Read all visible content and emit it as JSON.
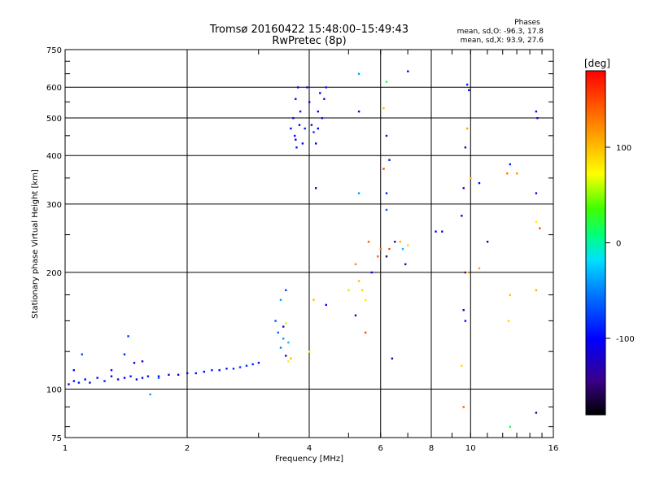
{
  "chart_data": {
    "type": "scatter",
    "title": "Tromsø 20160422 15:48:00–15:49:43",
    "subtitle": "RwPretec (8p)",
    "stats": {
      "heading": "Phases",
      "line_o": "mean, sd,O: -96.3, 17.8",
      "line_x": "mean, sd,X:  93.9, 27.6"
    },
    "xlabel": "Frequency [MHz]",
    "ylabel": "Stationary phase Virtual Height [km]",
    "xscale": "log",
    "yscale": "log",
    "xlim": [
      1,
      16
    ],
    "ylim": [
      75,
      750
    ],
    "x_ticks": [
      {
        "v": 1,
        "label": "1"
      },
      {
        "v": 2,
        "label": "2"
      },
      {
        "v": 4,
        "label": "4"
      },
      {
        "v": 6,
        "label": "6"
      },
      {
        "v": 8,
        "label": "8"
      },
      {
        "v": 10,
        "label": "10"
      },
      {
        "v": 16,
        "label": "16"
      }
    ],
    "y_ticks": [
      {
        "v": 75,
        "label": "75"
      },
      {
        "v": 100,
        "label": "100"
      },
      {
        "v": 200,
        "label": "200"
      },
      {
        "v": 300,
        "label": "300"
      },
      {
        "v": 400,
        "label": "400"
      },
      {
        "v": 500,
        "label": "500"
      },
      {
        "v": 600,
        "label": "600"
      },
      {
        "v": 750,
        "label": "750"
      }
    ],
    "colorbar": {
      "label": "[deg]",
      "range": [
        -180,
        180
      ],
      "ticks": [
        {
          "v": 100,
          "label": "100"
        },
        {
          "v": 0,
          "label": "0"
        },
        {
          "v": -100,
          "label": "-100"
        }
      ]
    },
    "points": [
      [
        1.02,
        103,
        -100
      ],
      [
        1.05,
        105,
        -105
      ],
      [
        1.08,
        104,
        -95
      ],
      [
        1.12,
        106,
        -100
      ],
      [
        1.15,
        104,
        -110
      ],
      [
        1.2,
        107,
        -100
      ],
      [
        1.25,
        105,
        -95
      ],
      [
        1.3,
        108,
        -100
      ],
      [
        1.35,
        106,
        -110
      ],
      [
        1.4,
        107,
        -100
      ],
      [
        1.45,
        108,
        -95
      ],
      [
        1.5,
        106,
        -105
      ],
      [
        1.55,
        107,
        -100
      ],
      [
        1.6,
        108,
        -95
      ],
      [
        1.7,
        108,
        -100
      ],
      [
        1.8,
        109,
        -105
      ],
      [
        1.9,
        109,
        -100
      ],
      [
        2.0,
        110,
        -100
      ],
      [
        2.1,
        110,
        -95
      ],
      [
        2.2,
        111,
        -100
      ],
      [
        2.3,
        112,
        -90
      ],
      [
        2.4,
        112,
        -95
      ],
      [
        2.5,
        113,
        -90
      ],
      [
        2.6,
        113,
        -85
      ],
      [
        2.7,
        114,
        -80
      ],
      [
        2.8,
        115,
        -85
      ],
      [
        2.9,
        116,
        -90
      ],
      [
        3.0,
        117,
        -95
      ],
      [
        1.05,
        112,
        -100
      ],
      [
        1.1,
        123,
        -70
      ],
      [
        1.3,
        112,
        -100
      ],
      [
        1.4,
        123,
        -90
      ],
      [
        1.43,
        137,
        -80
      ],
      [
        1.48,
        117,
        -120
      ],
      [
        1.62,
        97,
        -40
      ],
      [
        1.7,
        107,
        -60
      ],
      [
        1.55,
        118,
        -110
      ],
      [
        3.3,
        150,
        -70
      ],
      [
        3.35,
        140,
        -60
      ],
      [
        3.4,
        128,
        -50
      ],
      [
        3.45,
        135,
        -40
      ],
      [
        3.5,
        122,
        -110
      ],
      [
        3.55,
        118,
        80
      ],
      [
        3.6,
        120,
        100
      ],
      [
        3.4,
        170,
        -40
      ],
      [
        3.45,
        145,
        -120
      ],
      [
        3.5,
        148,
        60
      ],
      [
        3.55,
        132,
        -30
      ],
      [
        3.5,
        180,
        -80
      ],
      [
        3.65,
        500,
        -100
      ],
      [
        3.68,
        450,
        -95
      ],
      [
        3.7,
        560,
        -110
      ],
      [
        3.72,
        420,
        -90
      ],
      [
        3.75,
        600,
        -100
      ],
      [
        3.8,
        520,
        -95
      ],
      [
        3.78,
        480,
        -100
      ],
      [
        3.7,
        440,
        -110
      ],
      [
        3.85,
        430,
        -100
      ],
      [
        3.9,
        470,
        -90
      ],
      [
        3.95,
        600,
        -110
      ],
      [
        4.0,
        550,
        -100
      ],
      [
        4.05,
        480,
        -95
      ],
      [
        4.1,
        460,
        -80
      ],
      [
        4.15,
        430,
        -100
      ],
      [
        4.2,
        520,
        -100
      ],
      [
        4.25,
        580,
        -110
      ],
      [
        4.3,
        500,
        -95
      ],
      [
        4.35,
        560,
        -100
      ],
      [
        4.4,
        600,
        -90
      ],
      [
        4.2,
        470,
        -105
      ],
      [
        3.6,
        470,
        -100
      ],
      [
        5.3,
        650,
        -40
      ],
      [
        6.2,
        620,
        20
      ],
      [
        7.0,
        660,
        -120
      ],
      [
        5.3,
        520,
        -100
      ],
      [
        6.1,
        530,
        100
      ],
      [
        6.2,
        450,
        -120
      ],
      [
        6.3,
        390,
        -100
      ],
      [
        6.1,
        370,
        150
      ],
      [
        6.2,
        320,
        -90
      ],
      [
        6.2,
        290,
        -70
      ],
      [
        5.3,
        320,
        -40
      ],
      [
        4.15,
        330,
        -110
      ],
      [
        5.2,
        210,
        120
      ],
      [
        5.3,
        190,
        100
      ],
      [
        5.4,
        180,
        90
      ],
      [
        5.5,
        170,
        80
      ],
      [
        5.6,
        240,
        140
      ],
      [
        5.7,
        200,
        -100
      ],
      [
        5.9,
        220,
        140
      ],
      [
        6.0,
        230,
        130
      ],
      [
        6.2,
        220,
        -150
      ],
      [
        6.3,
        230,
        150
      ],
      [
        6.5,
        240,
        -140
      ],
      [
        6.7,
        240,
        100
      ],
      [
        6.8,
        230,
        -30
      ],
      [
        6.9,
        210,
        -140
      ],
      [
        7.0,
        235,
        90
      ],
      [
        4.1,
        170,
        100
      ],
      [
        4.4,
        165,
        -100
      ],
      [
        5.0,
        180,
        60
      ],
      [
        5.2,
        155,
        -120
      ],
      [
        5.5,
        140,
        150
      ],
      [
        6.4,
        120,
        -120
      ],
      [
        4.0,
        125,
        70
      ],
      [
        8.2,
        255,
        -100
      ],
      [
        8.5,
        255,
        -110
      ],
      [
        9.5,
        280,
        -120
      ],
      [
        9.6,
        330,
        -130
      ],
      [
        9.7,
        200,
        -120
      ],
      [
        9.8,
        200,
        90
      ],
      [
        10.0,
        350,
        100
      ],
      [
        10.5,
        340,
        -100
      ],
      [
        10.5,
        205,
        110
      ],
      [
        9.8,
        610,
        -90
      ],
      [
        9.9,
        590,
        -110
      ],
      [
        9.8,
        470,
        110
      ],
      [
        9.7,
        420,
        -150
      ],
      [
        12.5,
        380,
        -90
      ],
      [
        12.3,
        360,
        130
      ],
      [
        13.0,
        360,
        120
      ],
      [
        14.5,
        520,
        -100
      ],
      [
        14.6,
        500,
        -100
      ],
      [
        14.5,
        320,
        -100
      ],
      [
        14.5,
        270,
        80
      ],
      [
        14.8,
        260,
        150
      ],
      [
        11.0,
        240,
        -150
      ],
      [
        9.6,
        160,
        -110
      ],
      [
        9.7,
        150,
        -100
      ],
      [
        9.5,
        115,
        90
      ],
      [
        9.6,
        90,
        140
      ],
      [
        12.5,
        175,
        100
      ],
      [
        12.4,
        150,
        90
      ],
      [
        14.5,
        180,
        110
      ],
      [
        12.5,
        80,
        20
      ],
      [
        14.5,
        87,
        -150
      ]
    ]
  }
}
